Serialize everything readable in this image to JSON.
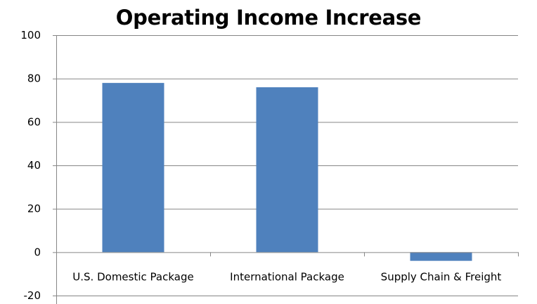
{
  "chart_data": {
    "type": "bar",
    "title": "Operating Income Increase",
    "xlabel": "",
    "ylabel": "",
    "categories": [
      "U.S. Domestic Package",
      "International Package",
      "Supply Chain & Freight"
    ],
    "values": [
      78,
      76,
      -4
    ],
    "ylim": [
      -20,
      100
    ],
    "yticks": [
      "100",
      "80",
      "60",
      "40",
      "20",
      "0",
      "-20"
    ],
    "ytick_values": [
      100,
      80,
      60,
      40,
      20,
      0,
      -20
    ],
    "grid": true,
    "legend": "none",
    "bar_color": "#4F81BD",
    "grid_color": "#868686",
    "axis_color": "#868686"
  }
}
